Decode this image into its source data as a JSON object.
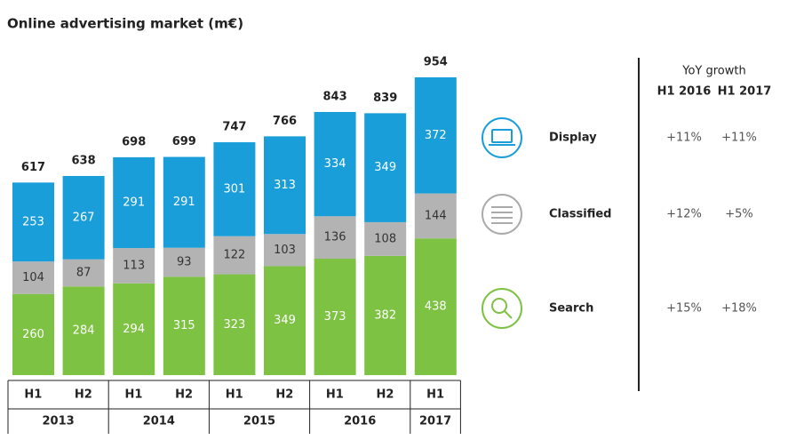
{
  "chart_data": {
    "type": "stacked-bar",
    "title": "Online advertising market (m€)",
    "groups": [
      {
        "label": "2013",
        "categories": [
          "H1",
          "H2"
        ]
      },
      {
        "label": "2014",
        "categories": [
          "H1",
          "H2"
        ]
      },
      {
        "label": "2015",
        "categories": [
          "H1",
          "H2"
        ]
      },
      {
        "label": "2016",
        "categories": [
          "H1",
          "H2"
        ]
      },
      {
        "label": "2017",
        "categories": [
          "H1"
        ]
      }
    ],
    "series": [
      {
        "name": "Search",
        "color": "#7dc242",
        "label_color": "#ffffff",
        "values": [
          260,
          284,
          294,
          315,
          323,
          349,
          373,
          382,
          438
        ],
        "growth": [
          15,
          18
        ],
        "growth_labels": [
          "+15%",
          "+18%"
        ]
      },
      {
        "name": "Classified",
        "color": "#b3b3b3",
        "label_color": "#333333",
        "values": [
          104,
          87,
          113,
          93,
          122,
          103,
          136,
          108,
          144
        ],
        "growth": [
          12,
          5
        ],
        "growth_labels": [
          "+12%",
          "+5%"
        ]
      },
      {
        "name": "Display",
        "color": "#1a9ed9",
        "label_color": "#ffffff",
        "values": [
          253,
          267,
          291,
          291,
          301,
          313,
          334,
          349,
          372
        ],
        "growth": [
          11,
          11
        ],
        "growth_labels": [
          "+11%",
          "+11%"
        ]
      }
    ],
    "totals": [
      617,
      638,
      698,
      699,
      747,
      766,
      843,
      839,
      954
    ],
    "growth_title": "YoY growth",
    "growth_columns": [
      "H1 2016",
      "H1 2017"
    ]
  }
}
